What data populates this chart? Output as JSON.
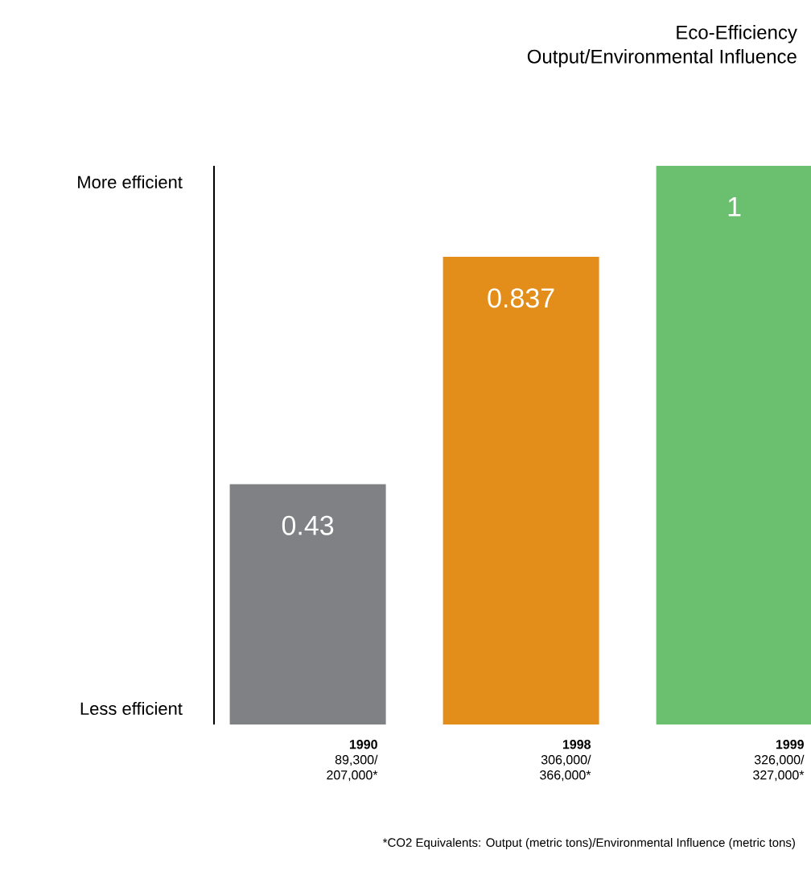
{
  "chart_data": {
    "type": "bar",
    "title": "Eco-Efficiency",
    "subtitle": "Output/Environmental Influence",
    "categories": [
      "**1990** 89,300/ 207,000*",
      "**1998** 306,000/ 366,000*",
      "**1999** 326,000/ 327,000*"
    ],
    "values": [
      0.43,
      0.837,
      1
    ],
    "colors": [
      "#808184",
      "#e38e1a",
      "#6bc070"
    ],
    "data_labels": true,
    "annotations": [
      "More efficient",
      "Less efficient",
      "*CO2 Equivalents: Output (metric tons)/Environmental Influence (metric tons)"
    ]
  }
}
